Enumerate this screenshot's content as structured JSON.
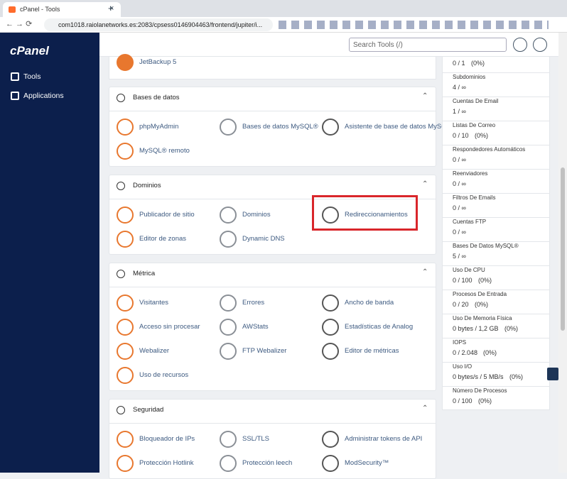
{
  "browser": {
    "tab_title": "cPanel - Tools",
    "url": "com1018.raiolanetworks.es:2083/cpsess0146904463/frontend/jupiter/i..."
  },
  "sidebar": {
    "logo": "cPanel",
    "items": [
      "Tools",
      "Applications"
    ]
  },
  "header": {
    "search_placeholder": "Search Tools (/)"
  },
  "top_card": {
    "items": [
      "JetBackup 5"
    ]
  },
  "sections": [
    {
      "title": "Bases de datos",
      "items": [
        "phpMyAdmin",
        "Bases de datos MySQL®",
        "Asistente de base de datos MySQL®",
        "MySQL® remoto"
      ]
    },
    {
      "title": "Dominios",
      "items": [
        "Publicador de sitio",
        "Dominios",
        "Redireccionamientos",
        "Editor de zonas",
        "Dynamic DNS"
      ]
    },
    {
      "title": "Métrica",
      "items": [
        "Visitantes",
        "Errores",
        "Ancho de banda",
        "Acceso sin procesar",
        "AWStats",
        "Estadísticas de Analog",
        "Webalizer",
        "FTP Webalizer",
        "Editor de métricas",
        "Uso de recursos"
      ]
    },
    {
      "title": "Seguridad",
      "items": [
        "Bloqueador de IPs",
        "SSL/TLS",
        "Administrar tokens de API",
        "Protección Hotlink",
        "Protección leech",
        "ModSecurity™"
      ]
    }
  ],
  "stats": [
    {
      "value": "0 / 1",
      "percent": "(0%)"
    },
    {
      "label": "Subdominios",
      "value": "4 / ∞"
    },
    {
      "label": "Cuentas De Email",
      "value": "1 / ∞"
    },
    {
      "label": "Listas De Correo",
      "value": "0 / 10",
      "percent": "(0%)"
    },
    {
      "label": "Respondedores Automáticos",
      "value": "0 / ∞"
    },
    {
      "label": "Reenviadores",
      "value": "0 / ∞"
    },
    {
      "label": "Filtros De Emails",
      "value": "0 / ∞"
    },
    {
      "label": "Cuentas FTP",
      "value": "0 / ∞"
    },
    {
      "label": "Bases De Datos MySQL®",
      "value": "5 / ∞"
    },
    {
      "label": "Uso De CPU",
      "value": "0 / 100",
      "percent": "(0%)"
    },
    {
      "label": "Procesos De Entrada",
      "value": "0 / 20",
      "percent": "(0%)"
    },
    {
      "label": "Uso De Memoria Física",
      "value": "0 bytes / 1,2 GB",
      "percent": "(0%)"
    },
    {
      "label": "IOPS",
      "value": "0 / 2.048",
      "percent": "(0%)"
    },
    {
      "label": "Uso I/O",
      "value": "0 bytes/s / 5 MB/s",
      "percent": "(0%)"
    },
    {
      "label": "Número De Procesos",
      "value": "0 / 100",
      "percent": "(0%)"
    }
  ]
}
